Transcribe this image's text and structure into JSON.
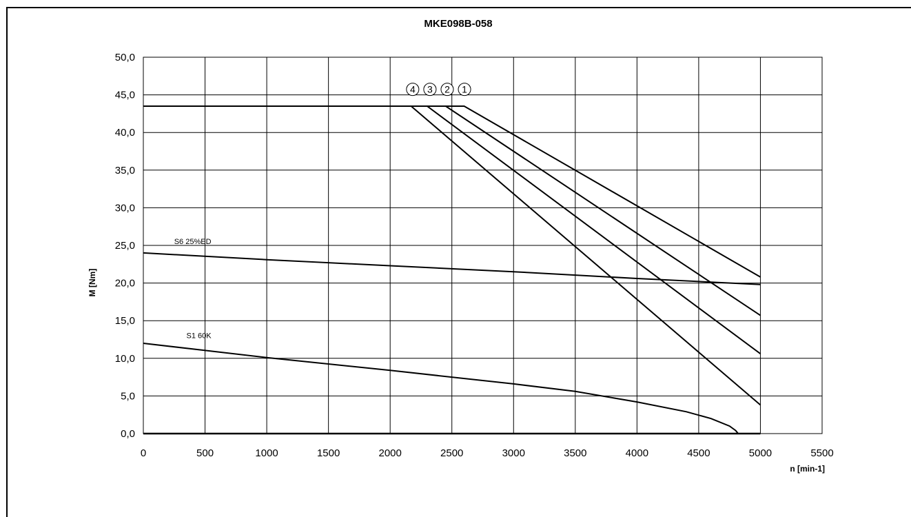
{
  "chart_data": {
    "type": "line",
    "title": "MKE098B-058",
    "xlabel": "n [min-1]",
    "ylabel": "M [Nm]",
    "xlim": [
      0,
      5500
    ],
    "ylim": [
      0,
      50
    ],
    "xticks": [
      "0",
      "500",
      "1000",
      "1500",
      "2000",
      "2500",
      "3000",
      "3500",
      "4000",
      "4500",
      "5000",
      "5500"
    ],
    "yticks": [
      "0,0",
      "5,0",
      "10,0",
      "15,0",
      "20,0",
      "25,0",
      "30,0",
      "35,0",
      "40,0",
      "45,0",
      "50,0"
    ],
    "grid": true,
    "legend": "none",
    "series": [
      {
        "name": "1",
        "points": [
          [
            0,
            43.5
          ],
          [
            2600,
            43.5
          ],
          [
            5000,
            20.8
          ]
        ]
      },
      {
        "name": "2",
        "points": [
          [
            0,
            43.5
          ],
          [
            2450,
            43.5
          ],
          [
            5000,
            15.7
          ]
        ]
      },
      {
        "name": "3",
        "points": [
          [
            0,
            43.5
          ],
          [
            2300,
            43.5
          ],
          [
            5000,
            10.6
          ]
        ]
      },
      {
        "name": "4",
        "points": [
          [
            0,
            43.5
          ],
          [
            2170,
            43.5
          ],
          [
            5000,
            3.8
          ]
        ]
      },
      {
        "name": "S6 25%ED",
        "points": [
          [
            0,
            24.0
          ],
          [
            1000,
            23.1
          ],
          [
            2000,
            22.3
          ],
          [
            3000,
            21.5
          ],
          [
            4000,
            20.6
          ],
          [
            5000,
            19.8
          ]
        ]
      },
      {
        "name": "S1 60K",
        "points": [
          [
            0,
            12.0
          ],
          [
            1000,
            10.1
          ],
          [
            2000,
            8.4
          ],
          [
            3000,
            6.6
          ],
          [
            3500,
            5.6
          ],
          [
            4000,
            4.2
          ],
          [
            4400,
            2.9
          ],
          [
            4600,
            2.0
          ],
          [
            4750,
            1.0
          ],
          [
            4800,
            0.4
          ],
          [
            4820,
            0.0
          ],
          [
            5000,
            0.0
          ]
        ]
      }
    ],
    "zero_line": [
      [
        0,
        0
      ],
      [
        5000,
        0
      ]
    ],
    "curve_markers": [
      {
        "label": "④",
        "x": 2160
      },
      {
        "label": "③",
        "x": 2300
      },
      {
        "label": "②",
        "x": 2440
      },
      {
        "label": "①",
        "x": 2580
      }
    ],
    "marker_y": 45.0,
    "annotations": [
      {
        "text": "S6 25%ED",
        "x": 400,
        "y": 25.0
      },
      {
        "text": "S1 60K",
        "x": 450,
        "y": 12.5
      }
    ]
  }
}
